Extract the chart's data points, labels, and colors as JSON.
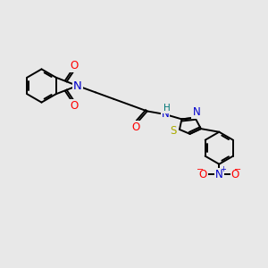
{
  "bg_color": "#e8e8e8",
  "bond_color": "#000000",
  "atom_colors": {
    "O": "#ff0000",
    "N": "#0000cc",
    "S": "#aaaa00",
    "H": "#007777",
    "C": "#000000"
  },
  "bond_width": 1.4,
  "font_size_atom": 8.5,
  "fig_bg": "#e8e8e8"
}
